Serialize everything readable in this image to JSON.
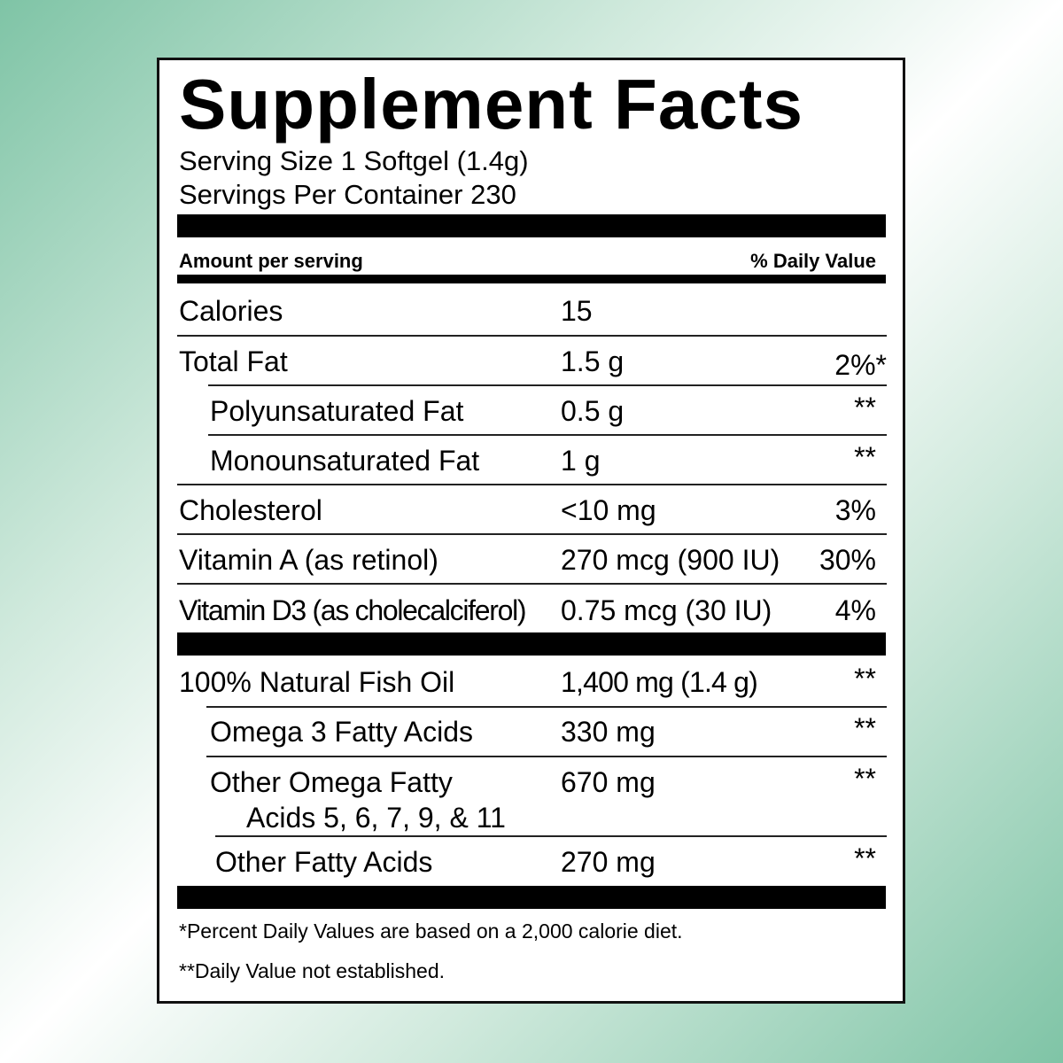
{
  "title": "Supplement Facts",
  "serving_size": "Serving Size 1 Softgel (1.4g)",
  "servings_per_container": "Servings Per Container 230",
  "header": {
    "amount": "Amount per serving",
    "dv": "% Daily Value"
  },
  "rows": [
    {
      "name": "Calories",
      "amount": "15",
      "dv": ""
    },
    {
      "name": "Total Fat",
      "amount": "1.5 g",
      "dv": "2%*"
    },
    {
      "name": "Polyunsaturated Fat",
      "amount": "0.5 g",
      "dv": "**"
    },
    {
      "name": "Monounsaturated Fat",
      "amount": "1 g",
      "dv": "**"
    },
    {
      "name": "Cholesterol",
      "amount": "<10 mg",
      "dv": "3%"
    },
    {
      "name": "Vitamin A (as retinol)",
      "amount": "270 mcg (900 IU)",
      "dv": "30%"
    },
    {
      "name": "Vitamin D3 (as cholecalciferol)",
      "amount": "0.75 mcg (30 IU)",
      "dv": "4%"
    }
  ],
  "rows2": [
    {
      "name": "100% Natural Fish Oil",
      "amount": "1,400 mg (1.4 g)",
      "dv": "**"
    },
    {
      "name": "Omega 3 Fatty Acids",
      "amount": "330 mg",
      "dv": "**"
    },
    {
      "name": "Other Omega Fatty",
      "name2": "Acids 5, 6, 7, 9, & 11",
      "amount": "670 mg",
      "dv": "**"
    },
    {
      "name": "Other Fatty Acids",
      "amount": "270 mg",
      "dv": "**"
    }
  ],
  "footnotes": [
    "*Percent Daily Values are based on a 2,000 calorie diet.",
    "**Daily Value not established."
  ]
}
